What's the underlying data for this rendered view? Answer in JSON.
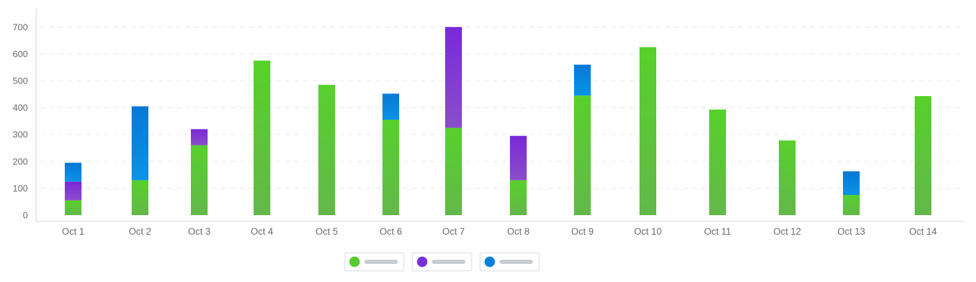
{
  "chart_data": {
    "type": "bar",
    "stacked": true,
    "categories": [
      "Oct 1",
      "Oct 2",
      "Oct 3",
      "Oct 4",
      "Oct 5",
      "Oct 6",
      "Oct 7",
      "Oct 8",
      "Oct 9",
      "Oct 10",
      "Oct 11",
      "Oct 12",
      "Oct 13",
      "Oct 14"
    ],
    "series": [
      {
        "color": "#55cc2d",
        "values": [
          55,
          130,
          260,
          575,
          485,
          355,
          325,
          130,
          445,
          625,
          393,
          278,
          75,
          443
        ]
      },
      {
        "color": "#7a2fd6",
        "values": [
          70,
          0,
          60,
          0,
          0,
          0,
          375,
          165,
          0,
          0,
          0,
          0,
          0,
          0
        ]
      },
      {
        "color": "#0a7fd8",
        "values": [
          70,
          275,
          0,
          0,
          0,
          97,
          0,
          0,
          115,
          0,
          0,
          0,
          88,
          0
        ]
      }
    ],
    "yticks": [
      0,
      100,
      200,
      300,
      400,
      500,
      600,
      700
    ],
    "ylim": [
      0,
      730
    ],
    "grid": true,
    "legend": "bottom-center"
  }
}
